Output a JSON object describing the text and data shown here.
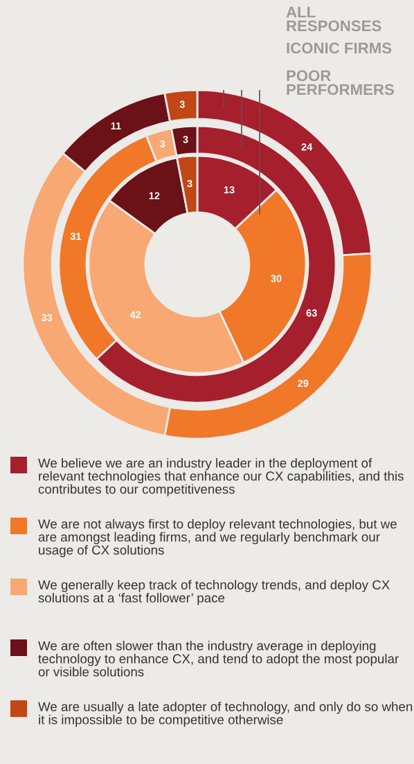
{
  "chart_data": {
    "type": "donut",
    "categories": [
      "We believe we are an industry leader in the deployment of relevant technologies that enhance our CX capabilities, and this contributes to our competitiveness",
      "We are not always first to deploy relevant technologies, but we are amongst leading firms, and we regularly benchmark our usage of CX solutions",
      "We generally keep track of technology trends, and deploy CX solutions at a ‘fast follower’ pace",
      "We are often slower than the industry average in deploying technology to enhance CX, and tend to adopt the most popular or visible solutions",
      "We are usually a late adopter of technology, and only do so when it is impossible to be competitive otherwise"
    ],
    "colors": [
      "#a51f2d",
      "#f07828",
      "#f7a873",
      "#6b1118",
      "#c24616"
    ],
    "series": [
      {
        "name": "ALL RESPONSES",
        "values": [
          24,
          29,
          33,
          11,
          3
        ]
      },
      {
        "name": "ICONIC FIRMS",
        "values": [
          63,
          31,
          3,
          3,
          null
        ]
      },
      {
        "name": "POOR PERFORMERS",
        "values": [
          13,
          30,
          42,
          12,
          3
        ]
      }
    ],
    "data_labels": true,
    "legend": "bottom"
  }
}
